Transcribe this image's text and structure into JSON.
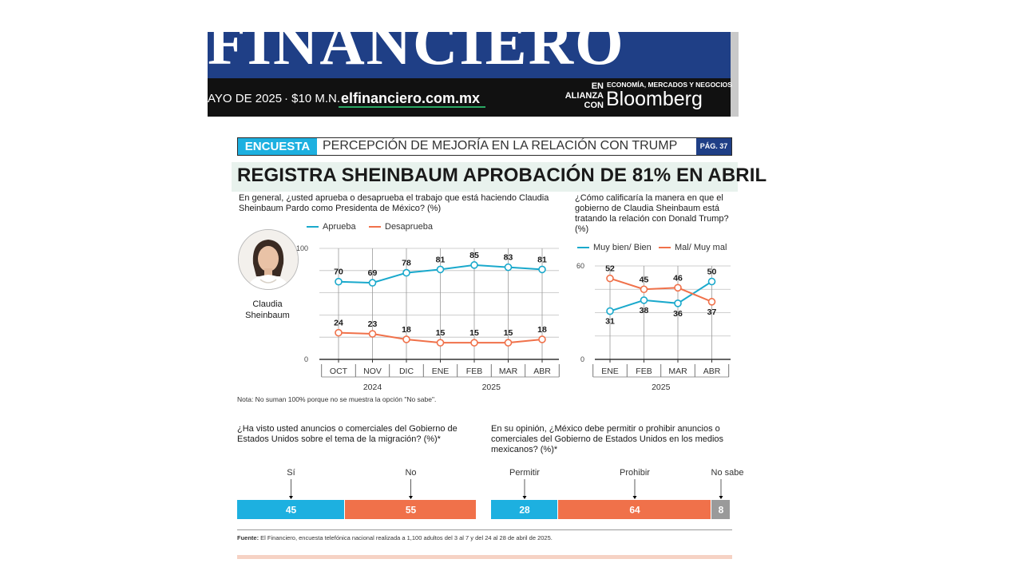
{
  "masthead": {
    "title": "FINANCIERO",
    "date": "AYO DE 2025",
    "price": "· $10 M.N. ·",
    "website": "elfinanciero.com.mx",
    "alliance_label": "EN ALIANZA CON",
    "alliance_note": "ECONOMÍA, MERCADOS Y NEGOCIOS",
    "alliance_brand": "Bloomberg"
  },
  "section": {
    "tag": "ENCUESTA",
    "title": "PERCEPCIÓN DE MEJORÍA EN LA RELACIÓN CON TRUMP",
    "page": "PÁG. 37"
  },
  "headline": "REGISTRA SHEINBAUM APROBACIÓN DE 81% EN ABRIL",
  "photo_caption": "Claudia Sheinbaum",
  "note": "Nota: No suman 100% porque no se muestra la opción \"No sabe\".",
  "source_label": "Fuente:",
  "source_text": " El Financiero, encuesta telefónica nacional realizada a 1,100 adultos del 3 al 7 y del 24 al 28 de abril de 2025.",
  "colors": {
    "teal": "#1aa9cc",
    "orange": "#f0714a",
    "gray": "#9a9a9a",
    "navy": "#1f3f86",
    "cyan": "#1db0e0"
  },
  "chart_data": [
    {
      "type": "line",
      "title": "En general, ¿usted aprueba o desaprueba el trabajo que está haciendo Claudia Sheinbaum Pardo como Presidenta de México? (%)",
      "categories": [
        "OCT",
        "NOV",
        "DIC",
        "ENE",
        "FEB",
        "MAR",
        "ABR"
      ],
      "year_labels": [
        {
          "label": "2024",
          "from": 0,
          "to": 2
        },
        {
          "label": "2025",
          "from": 3,
          "to": 6
        }
      ],
      "series": [
        {
          "name": "Aprueba",
          "values": [
            70,
            69,
            78,
            81,
            85,
            83,
            81
          ],
          "color": "#1aa9cc"
        },
        {
          "name": "Desaprueba",
          "values": [
            24,
            23,
            18,
            15,
            15,
            15,
            18
          ],
          "color": "#f0714a"
        }
      ],
      "yticks": [
        "100",
        "0"
      ],
      "ylim": [
        0,
        100
      ],
      "grid": true,
      "legend": "top"
    },
    {
      "type": "line",
      "title": "¿Cómo calificaría la manera en que el gobierno de Claudia Sheinbaum está tratando la relación con Donald Trump? (%)",
      "categories": [
        "ENE",
        "FEB",
        "MAR",
        "ABR"
      ],
      "year_labels": [
        {
          "label": "2025",
          "from": 0,
          "to": 3
        }
      ],
      "series": [
        {
          "name": "Muy bien/ Bien",
          "values": [
            31,
            38,
            36,
            50
          ],
          "color": "#1aa9cc"
        },
        {
          "name": "Mal/ Muy mal",
          "values": [
            52,
            45,
            46,
            37
          ],
          "color": "#f0714a"
        }
      ],
      "yticks": [
        "60",
        "0"
      ],
      "ylim": [
        0,
        60
      ],
      "grid": true,
      "legend": "top"
    },
    {
      "type": "bar",
      "stacked": true,
      "title": "¿Ha visto usted anuncios o comerciales del Gobierno de Estados Unidos sobre el tema de la migración? (%)*",
      "categories": [
        "Sí",
        "No"
      ],
      "values": [
        45,
        55
      ],
      "colors": [
        "#1db0e0",
        "#f0714a"
      ]
    },
    {
      "type": "bar",
      "stacked": true,
      "title": "En su opinión, ¿México debe permitir o prohibir anuncios o comerciales del Gobierno de Estados Unidos en los medios mexicanos? (%)*",
      "categories": [
        "Permitir",
        "Prohibir",
        "No sabe"
      ],
      "values": [
        28,
        64,
        8
      ],
      "colors": [
        "#1db0e0",
        "#f0714a",
        "#9a9a9a"
      ]
    }
  ]
}
